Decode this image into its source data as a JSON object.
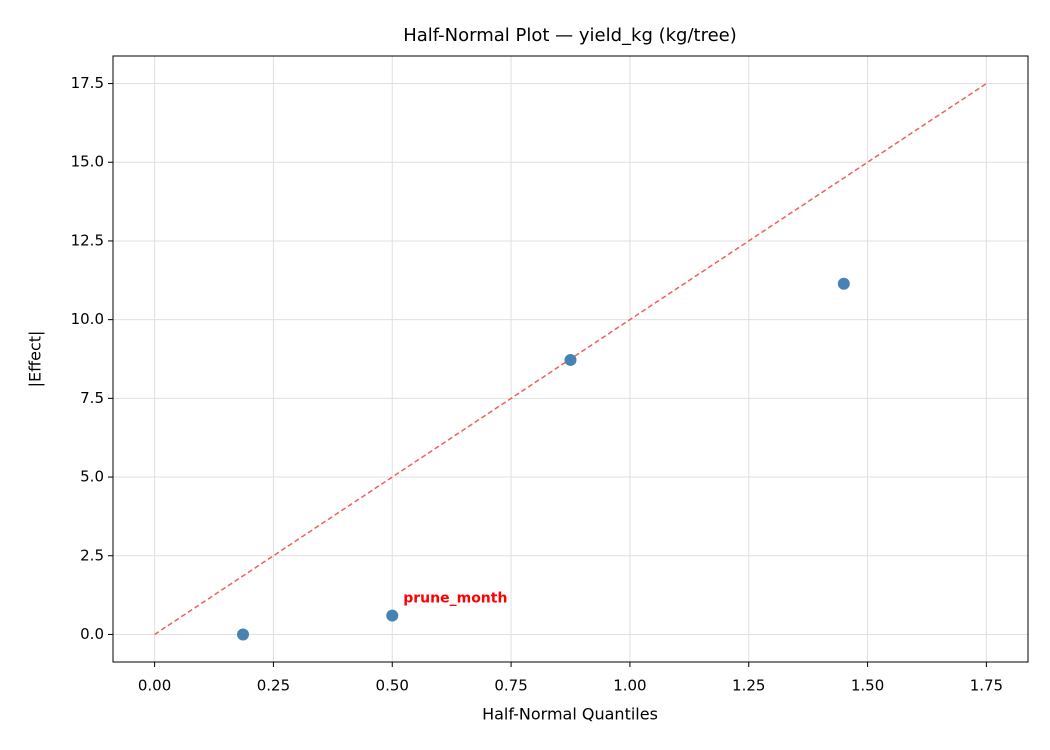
{
  "chart_data": {
    "type": "scatter",
    "title": "Half-Normal Plot — yield_kg (kg/tree)",
    "xlabel": "Half-Normal Quantiles",
    "ylabel": "|Effect|",
    "series": [
      {
        "name": "effects",
        "color": "#4682b4",
        "x": [
          0.186,
          0.5,
          0.875,
          1.45
        ],
        "values": [
          0.0,
          0.6,
          8.72,
          11.14
        ],
        "labels": [
          null,
          "prune_month",
          null,
          null
        ],
        "label_color": "#ff0000"
      }
    ],
    "reference_line": {
      "x": [
        0,
        1.75
      ],
      "y": [
        0,
        17.5
      ],
      "color": "#f0605a",
      "dashed": true
    },
    "xlim": [
      -0.0875,
      1.8375
    ],
    "ylim": [
      -0.875,
      18.375
    ],
    "xticks": [
      {
        "value": 0,
        "label": "0.00"
      },
      0.25,
      {
        "value": 0.5,
        "label": "0.50"
      },
      0.75,
      {
        "value": 1,
        "label": "1.00"
      },
      1.25,
      {
        "value": 1.5,
        "label": "1.50"
      },
      1.75
    ],
    "yticks": [
      {
        "value": 0,
        "label": "0.0"
      },
      2.5,
      {
        "value": 5,
        "label": "5.0"
      },
      7.5,
      {
        "value": 10,
        "label": "10.0"
      },
      12.5,
      {
        "value": 15,
        "label": "15.0"
      },
      17.5
    ],
    "grid": true
  }
}
